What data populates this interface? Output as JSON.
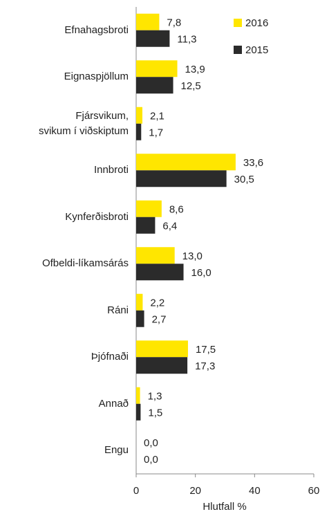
{
  "chart_data": {
    "type": "bar",
    "orientation": "horizontal",
    "categories": [
      "Efnahagsbroti",
      "Eignaspjöllum",
      "Fjársvikum,\nsvikum í viðskiptum",
      "Innbroti",
      "Kynferðisbroti",
      "Ofbeldi-líkamsárás",
      "Ráni",
      "Þjófnaði",
      "Annað",
      "Engu"
    ],
    "series": [
      {
        "name": "2016",
        "color": "#ffe600",
        "values": [
          7.8,
          13.9,
          2.1,
          33.6,
          8.6,
          13.0,
          2.2,
          17.5,
          1.3,
          0.0
        ],
        "value_labels": [
          "7,8",
          "13,9",
          "2,1",
          "33,6",
          "8,6",
          "13,0",
          "2,2",
          "17,5",
          "1,3",
          "0,0"
        ]
      },
      {
        "name": "2015",
        "color": "#2b2b2b",
        "values": [
          11.3,
          12.5,
          1.7,
          30.5,
          6.4,
          16.0,
          2.7,
          17.3,
          1.5,
          0.0
        ],
        "value_labels": [
          "11,3",
          "12,5",
          "1,7",
          "30,5",
          "6,4",
          "16,0",
          "2,7",
          "17,3",
          "1,5",
          "0,0"
        ]
      }
    ],
    "xlabel": "Hlutfall %",
    "xlim": [
      0,
      60
    ],
    "xticks": [
      0,
      20,
      40,
      60
    ],
    "legend": "top-right"
  }
}
